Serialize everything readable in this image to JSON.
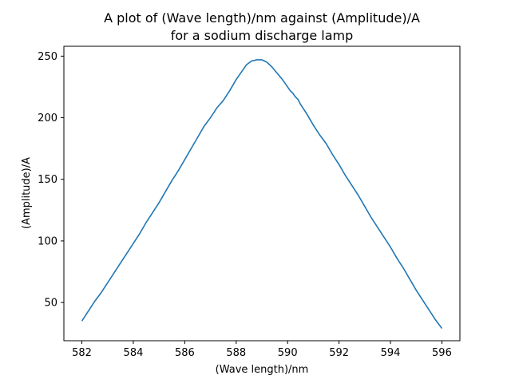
{
  "chart_data": {
    "type": "line",
    "title_line1": "A plot of (Wave length)/nm against (Amplitude)/A",
    "title_line2": "for a sodium discharge lamp",
    "xlabel": "(Wave length)/nm",
    "ylabel": "(Amplitude)/A",
    "xlim": [
      581.3,
      596.7
    ],
    "ylim": [
      19.0,
      258.0
    ],
    "xticks": [
      582,
      584,
      586,
      588,
      590,
      592,
      594,
      596
    ],
    "yticks": [
      50,
      100,
      150,
      200,
      250
    ],
    "grid": false,
    "line_color": "#1f77b4",
    "series": [
      {
        "x": [
          582.0,
          582.25,
          582.5,
          582.75,
          583.0,
          583.25,
          583.5,
          583.75,
          584.0,
          584.25,
          584.5,
          584.75,
          585.0,
          585.25,
          585.5,
          585.75,
          586.0,
          586.25,
          586.5,
          586.75,
          587.0,
          587.25,
          587.5,
          587.75,
          588.0,
          588.2,
          588.4,
          588.6,
          588.8,
          589.0,
          589.2,
          589.4,
          589.6,
          589.8,
          590.0,
          590.1,
          590.2,
          590.3,
          590.4,
          590.5,
          590.75,
          591.0,
          591.25,
          591.5,
          591.75,
          592.0,
          592.25,
          592.5,
          592.75,
          593.0,
          593.25,
          593.5,
          593.75,
          594.0,
          594.25,
          594.5,
          594.75,
          595.0,
          595.25,
          595.5,
          595.75,
          596.0
        ],
        "y": [
          35,
          43,
          51,
          58,
          66,
          74,
          82,
          90,
          98,
          106,
          115,
          123,
          131,
          140,
          149,
          157,
          166,
          175,
          184,
          193,
          200,
          208,
          214,
          222,
          231,
          237,
          243,
          246,
          247,
          247,
          245,
          241,
          236,
          231,
          225,
          222,
          220,
          217,
          215,
          211,
          203,
          194,
          186,
          179,
          170,
          162,
          153,
          145,
          137,
          128,
          119,
          111,
          103,
          95,
          86,
          78,
          69,
          60,
          52,
          44,
          36,
          29
        ]
      }
    ]
  }
}
